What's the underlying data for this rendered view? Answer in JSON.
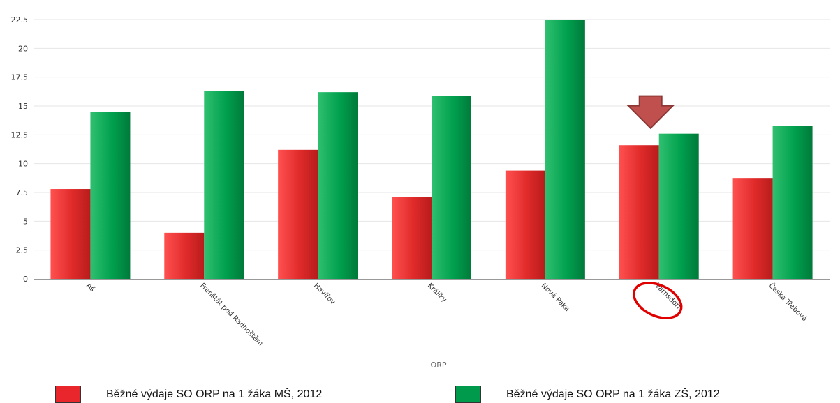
{
  "chart_data": {
    "type": "bar",
    "categories": [
      "Aš",
      "Frenštát pod Radhoštěm",
      "Havířov",
      "Králíky",
      "Nová Paka",
      "Varnsdorf",
      "Česká Třebová"
    ],
    "series": [
      {
        "name": "Běžné výdaje SO ORP na 1 žáka MŠ, 2012",
        "color": "#e8262c",
        "values": [
          7.8,
          4.0,
          11.2,
          7.1,
          9.4,
          11.6,
          8.7
        ]
      },
      {
        "name": "Běžné výdaje SO ORP na 1 žáka ZŠ, 2012",
        "color": "#009a4c",
        "values": [
          14.5,
          16.3,
          16.2,
          15.9,
          22.5,
          12.6,
          13.3
        ]
      }
    ],
    "xlabel": "ORP",
    "ylabel": "",
    "ylim": [
      0,
      22.5
    ],
    "yticks": [
      "0",
      "2.5",
      "5",
      "7.5",
      "10",
      "12.5",
      "15",
      "17.5",
      "20",
      "22.5"
    ],
    "grid": true,
    "legend_position": "bottom",
    "highlight": {
      "category": "Varnsdorf",
      "marker": "arrow-and-circle",
      "arrow_color": "#c0504d",
      "circle_color": "#e00000"
    }
  }
}
